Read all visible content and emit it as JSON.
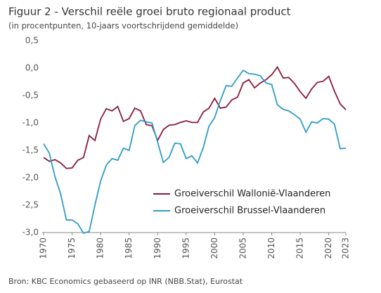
{
  "chart_data": {
    "type": "line",
    "title": "Figuur 2 - Verschil reële groei bruto regionaal product",
    "subtitle": "(in procentpunten, 10-jaars voortschrijdend gemiddelde)",
    "source": "Bron: KBC Economics gebaseerd op INR (NBB.Stat), Eurostat",
    "x": [
      1970,
      1971,
      1972,
      1973,
      1974,
      1975,
      1976,
      1977,
      1978,
      1979,
      1980,
      1981,
      1982,
      1983,
      1984,
      1985,
      1986,
      1987,
      1988,
      1989,
      1990,
      1991,
      1992,
      1993,
      1994,
      1995,
      1996,
      1997,
      1998,
      1999,
      2000,
      2001,
      2002,
      2003,
      2004,
      2005,
      2006,
      2007,
      2008,
      2009,
      2010,
      2011,
      2012,
      2013,
      2014,
      2015,
      2016,
      2017,
      2018,
      2019,
      2020,
      2021,
      2022,
      2023
    ],
    "series": [
      {
        "name": "Groeiverschil Wallonië-Vlaanderen",
        "color": "#8b1a3a",
        "values": [
          -1.63,
          -1.7,
          -1.67,
          -1.73,
          -1.83,
          -1.82,
          -1.68,
          -1.63,
          -1.23,
          -1.32,
          -0.93,
          -0.74,
          -0.78,
          -0.7,
          -0.97,
          -0.92,
          -0.73,
          -0.78,
          -1.03,
          -1.05,
          -1.32,
          -1.12,
          -1.04,
          -1.03,
          -0.99,
          -0.96,
          -0.99,
          -0.99,
          -0.8,
          -0.73,
          -0.55,
          -0.73,
          -0.71,
          -0.58,
          -0.53,
          -0.27,
          -0.21,
          -0.36,
          -0.27,
          -0.21,
          -0.12,
          0.02,
          -0.18,
          -0.17,
          -0.28,
          -0.43,
          -0.55,
          -0.38,
          -0.26,
          -0.24,
          -0.15,
          -0.42,
          -0.65,
          -0.76
        ]
      },
      {
        "name": "Groeiverschil Brussel-Vlaanderen",
        "color": "#2e9cc7",
        "values": [
          -1.38,
          -1.55,
          -1.98,
          -2.3,
          -2.77,
          -2.77,
          -2.84,
          -3.01,
          -2.98,
          -2.5,
          -2.06,
          -1.77,
          -1.65,
          -1.68,
          -1.46,
          -1.5,
          -1.05,
          -0.95,
          -0.98,
          -1.0,
          -1.35,
          -1.72,
          -1.63,
          -1.37,
          -1.38,
          -1.65,
          -1.6,
          -1.73,
          -1.45,
          -1.06,
          -0.9,
          -0.59,
          -0.32,
          -0.33,
          -0.18,
          -0.04,
          -0.1,
          -0.11,
          -0.14,
          -0.27,
          -0.3,
          -0.67,
          -0.75,
          -0.78,
          -0.85,
          -0.93,
          -1.17,
          -0.98,
          -1.0,
          -0.92,
          -0.93,
          -1.02,
          -1.47,
          -1.46
        ]
      }
    ],
    "xlim": [
      1970,
      2023
    ],
    "xticks": [
      1970,
      1975,
      1980,
      1985,
      1990,
      1995,
      2000,
      2005,
      2010,
      2015,
      2020,
      2023
    ],
    "ylim": [
      -3.0,
      0.5
    ],
    "yticks": [
      {
        "value": -3.0,
        "label": "-3,0"
      },
      {
        "value": -2.5,
        "label": "-2,5"
      },
      {
        "value": -2.0,
        "label": "-2,0"
      },
      {
        "value": -1.5,
        "label": "-1,5"
      },
      {
        "value": -1.0,
        "label": "-1,0"
      },
      {
        "value": -0.5,
        "label": "-0,5"
      },
      {
        "value": 0.0,
        "label": "0,0"
      },
      {
        "value": 0.5,
        "label": "0,5"
      }
    ],
    "grid": false,
    "legend": "lower-right"
  }
}
